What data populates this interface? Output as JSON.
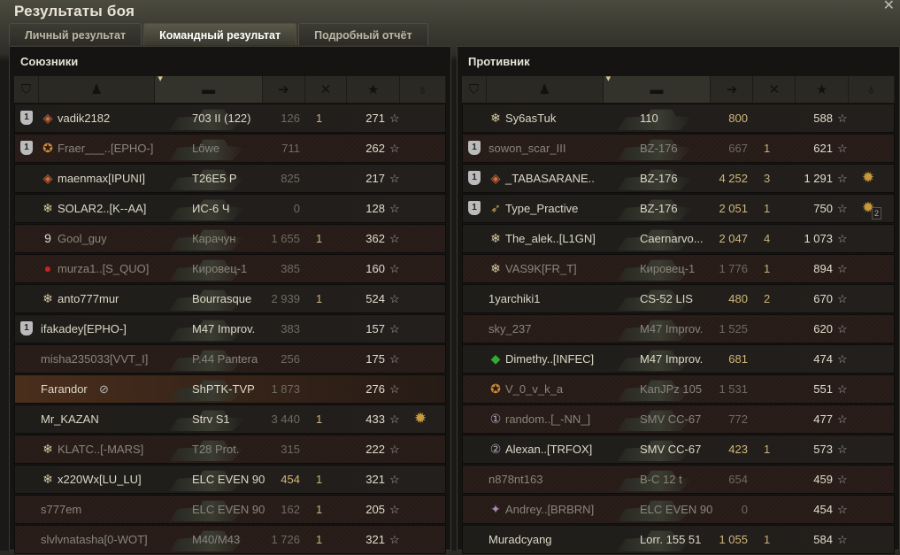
{
  "window": {
    "title": "Результаты боя"
  },
  "tabs": [
    {
      "label": "Личный результат",
      "active": false
    },
    {
      "label": "Командный результат",
      "active": true
    },
    {
      "label": "Подробный отчёт",
      "active": false
    }
  ],
  "columns": [
    "platoon-icon",
    "player-icon",
    "tank-icon",
    "damage-icon",
    "frags-icon",
    "xp-star-icon",
    "medal-icon"
  ],
  "colors": {
    "accent": "#d2b77a",
    "self_row": "#4a2e1c"
  },
  "allies": {
    "title": "Союзники",
    "rows": [
      {
        "platoon": "1",
        "badge": "rank-1",
        "name": "vadik2182",
        "tank": "703 II (122)",
        "damage": "126",
        "frags": "1",
        "xp": "271",
        "state": "alive"
      },
      {
        "platoon": "1",
        "badge": "mastery",
        "name": "Fraer___..[EPHO-]",
        "tank": "Löwe",
        "damage": "711",
        "frags": "",
        "xp": "262",
        "state": "dead"
      },
      {
        "platoon": "",
        "badge": "rank-1",
        "name": "maenmax[IPUNI]",
        "tank": "T26E5 P",
        "damage": "825",
        "frags": "",
        "xp": "217",
        "state": "alive"
      },
      {
        "platoon": "",
        "badge": "snowflake",
        "name": "SOLAR2..[K--AA]",
        "tank": "ИС-6 Ч",
        "damage": "0",
        "frags": "",
        "xp": "128",
        "state": "alive"
      },
      {
        "platoon": "",
        "badge": "rank-9",
        "name": "Gool_guy",
        "tank": "Карачун",
        "damage": "1 655",
        "frags": "1",
        "xp": "362",
        "state": "dead"
      },
      {
        "platoon": "",
        "badge": "red-medal",
        "name": "murza1..[S_QUO]",
        "tank": "Кировец-1",
        "damage": "385",
        "frags": "",
        "xp": "160",
        "state": "dead"
      },
      {
        "platoon": "",
        "badge": "snowflake",
        "name": "anto777mur",
        "tank": "Bourrasque",
        "damage": "2 939",
        "frags": "1",
        "xp": "524",
        "state": "alive"
      },
      {
        "platoon": "1",
        "badge": "",
        "name": "ifakadey[EPHO-]",
        "tank": "M47 Improv.",
        "damage": "383",
        "frags": "",
        "xp": "157",
        "state": "alive"
      },
      {
        "platoon": "",
        "badge": "",
        "name": "misha235033[VVT_I]",
        "tank": "P.44 Pantera",
        "damage": "256",
        "frags": "",
        "xp": "175",
        "state": "dead"
      },
      {
        "platoon": "",
        "badge": "",
        "name": "Farandor",
        "hidden_icon": true,
        "tank": "ShPTK-TVP",
        "damage": "1 873",
        "frags": "",
        "xp": "276",
        "state": "self"
      },
      {
        "platoon": "",
        "badge": "",
        "name": "Mr_KAZAN",
        "tank": "Strv S1",
        "damage": "3 440",
        "frags": "1",
        "xp": "433",
        "medal": true,
        "state": "alive"
      },
      {
        "platoon": "",
        "badge": "snowflake",
        "name": "KLATC..[-MARS]",
        "tank": "T28 Prot.",
        "damage": "315",
        "frags": "",
        "xp": "222",
        "state": "dead"
      },
      {
        "platoon": "",
        "badge": "snowflake",
        "name": "x220Wx[LU_LU]",
        "tank": "ELC EVEN 90",
        "damage": "454",
        "frags": "1",
        "xp": "321",
        "state": "bright"
      },
      {
        "platoon": "",
        "badge": "",
        "name": "s777em",
        "tank": "ELC EVEN 90",
        "damage": "162",
        "frags": "1",
        "xp": "205",
        "state": "dead"
      },
      {
        "platoon": "",
        "badge": "",
        "name": "slvlvnatasha[0-WOT]",
        "tank": "M40/M43",
        "damage": "1 726",
        "frags": "1",
        "xp": "321",
        "state": "dead"
      }
    ]
  },
  "enemies": {
    "title": "Противник",
    "rows": [
      {
        "platoon": "",
        "badge": "snowflake",
        "name": "Sy6asTuk",
        "tank": "110",
        "damage": "800",
        "frags": "",
        "xp": "588",
        "state": "bright"
      },
      {
        "platoon": "1",
        "badge": "",
        "name": "sowon_scar_III",
        "tank": "BZ-176",
        "damage": "667",
        "frags": "1",
        "xp": "621",
        "state": "dead"
      },
      {
        "platoon": "1",
        "badge": "rank-1",
        "name": "_TABASARANE..",
        "tank": "BZ-176",
        "damage": "4 252",
        "frags": "3",
        "xp": "1 291",
        "medal": true,
        "state": "bright"
      },
      {
        "platoon": "1",
        "badge": "wings",
        "name": "Type_Practive",
        "tank": "BZ-176",
        "damage": "2 051",
        "frags": "1",
        "xp": "750",
        "medal": true,
        "medal_count": "2",
        "state": "bright"
      },
      {
        "platoon": "",
        "badge": "snowflake",
        "name": "The_alek..[L1GN]",
        "tank": "Caernarvo...",
        "damage": "2 047",
        "frags": "4",
        "xp": "1 073",
        "state": "bright"
      },
      {
        "platoon": "",
        "badge": "snowflake",
        "name": "VAS9K[FR_T]",
        "tank": "Кировец-1",
        "damage": "1 776",
        "frags": "1",
        "xp": "894",
        "state": "dead"
      },
      {
        "platoon": "",
        "badge": "",
        "name": "1yarchiki1",
        "tank": "CS-52 LIS",
        "damage": "480",
        "frags": "2",
        "xp": "670",
        "state": "bright"
      },
      {
        "platoon": "",
        "badge": "",
        "name": "sky_237",
        "tank": "M47 Improv.",
        "damage": "1 525",
        "frags": "",
        "xp": "620",
        "state": "dead"
      },
      {
        "platoon": "",
        "badge": "rank-13",
        "name": "Dimethy..[INFEC]",
        "tank": "M47 Improv.",
        "damage": "681",
        "frags": "",
        "xp": "474",
        "state": "bright"
      },
      {
        "platoon": "",
        "badge": "mastery",
        "name": "V_0_v_k_a",
        "tank": "KanJPz 105",
        "damage": "1 531",
        "frags": "",
        "xp": "551",
        "state": "dead"
      },
      {
        "platoon": "",
        "badge": "rank-1-circle",
        "name": "random..[_-NN_]",
        "tank": "SMV CC-67",
        "damage": "772",
        "frags": "",
        "xp": "477",
        "state": "dead"
      },
      {
        "platoon": "",
        "badge": "rank-2-circle",
        "name": "Alexan..[TRFOX]",
        "tank": "SMV CC-67",
        "damage": "423",
        "frags": "1",
        "xp": "573",
        "state": "bright"
      },
      {
        "platoon": "",
        "badge": "",
        "name": "n878nt163",
        "tank": "B-C 12 t",
        "damage": "654",
        "frags": "",
        "xp": "459",
        "state": "dead"
      },
      {
        "platoon": "",
        "badge": "ribbon",
        "name": "Andrey..[BRBRN]",
        "tank": "ELC EVEN 90",
        "damage": "0",
        "frags": "",
        "xp": "454",
        "state": "dead"
      },
      {
        "platoon": "",
        "badge": "",
        "name": "Muradcyang",
        "tank": "Lorr. 155 51",
        "damage": "1 055",
        "frags": "1",
        "xp": "584",
        "state": "bright"
      }
    ]
  }
}
